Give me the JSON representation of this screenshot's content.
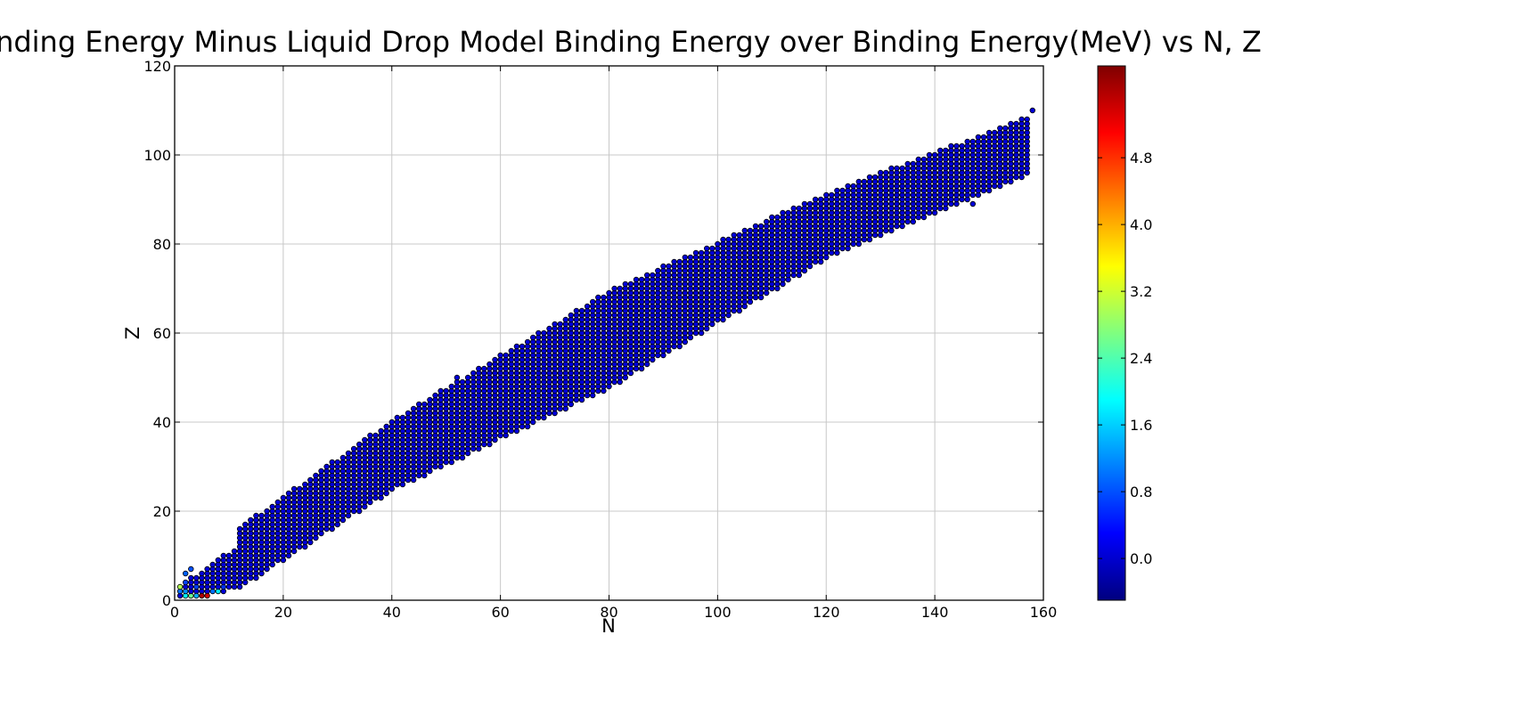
{
  "chart_data": {
    "type": "scatter",
    "title": "Binding Energy Minus Liquid Drop Model Binding Energy over Binding Energy(MeV) vs N, Z",
    "xlabel": "N",
    "ylabel": "Z",
    "xlim": [
      0,
      160
    ],
    "ylim": [
      0,
      120
    ],
    "xticks": [
      "0",
      "20",
      "40",
      "60",
      "80",
      "100",
      "120",
      "140",
      "160"
    ],
    "yticks": [
      "0",
      "20",
      "40",
      "60",
      "80",
      "100",
      "120"
    ],
    "grid": true,
    "colormap": "jet",
    "colorbar": {
      "range": [
        -0.5,
        5.9
      ],
      "ticks": [
        "0.0",
        "0.8",
        "1.6",
        "2.4",
        "3.2",
        "4.0",
        "4.8"
      ]
    },
    "band_description": "valley of stability: for each N, nuclei span a range of Z",
    "bands": [
      {
        "n": [
          1,
          12
        ],
        "z_min_at_start": 1,
        "z_min_at_end": 3,
        "z_max_at_start": 3,
        "z_max_at_end": 12
      },
      {
        "n": [
          12,
          40
        ],
        "z_min_at_start": 3,
        "z_min_at_end": 25,
        "z_max_at_start": 16,
        "z_max_at_end": 40
      },
      {
        "n": [
          40,
          80
        ],
        "z_min_at_start": 25,
        "z_min_at_end": 48,
        "z_max_at_start": 40,
        "z_max_at_end": 69
      },
      {
        "n": [
          80,
          120
        ],
        "z_min_at_start": 48,
        "z_min_at_end": 77,
        "z_max_at_start": 69,
        "z_max_at_end": 91
      },
      {
        "n": [
          120,
          157
        ],
        "z_min_at_start": 77,
        "z_min_at_end": 96,
        "z_max_at_start": 91,
        "z_max_at_end": 108
      }
    ],
    "default_value": 0.05,
    "highlighted_points": [
      {
        "n": 1,
        "z": 3,
        "value": 3.0
      },
      {
        "n": 1,
        "z": 2,
        "value": 1.0
      },
      {
        "n": 2,
        "z": 1,
        "value": 1.9
      },
      {
        "n": 3,
        "z": 1,
        "value": 2.6
      },
      {
        "n": 4,
        "z": 1,
        "value": 1.4
      },
      {
        "n": 5,
        "z": 1,
        "value": 5.6
      },
      {
        "n": 6,
        "z": 1,
        "value": 5.4
      },
      {
        "n": 2,
        "z": 2,
        "value": 1.2
      },
      {
        "n": 8,
        "z": 2,
        "value": 1.8
      },
      {
        "n": 7,
        "z": 2,
        "value": 1.0
      },
      {
        "n": 2,
        "z": 6,
        "value": 0.9
      },
      {
        "n": 3,
        "z": 7,
        "value": 0.8
      },
      {
        "n": 2,
        "z": 4,
        "value": 0.7
      },
      {
        "n": 4,
        "z": 3,
        "value": 0.7
      },
      {
        "n": 9,
        "z": 3,
        "value": 0.6
      }
    ],
    "extra_points": [
      {
        "n": 158,
        "z": 110
      },
      {
        "n": 155,
        "z": 104
      },
      {
        "n": 157,
        "z": 104
      },
      {
        "n": 147,
        "z": 89
      },
      {
        "n": 139,
        "z": 98
      },
      {
        "n": 137,
        "z": 96
      },
      {
        "n": 52,
        "z": 50
      },
      {
        "n": 63,
        "z": 56
      }
    ]
  }
}
